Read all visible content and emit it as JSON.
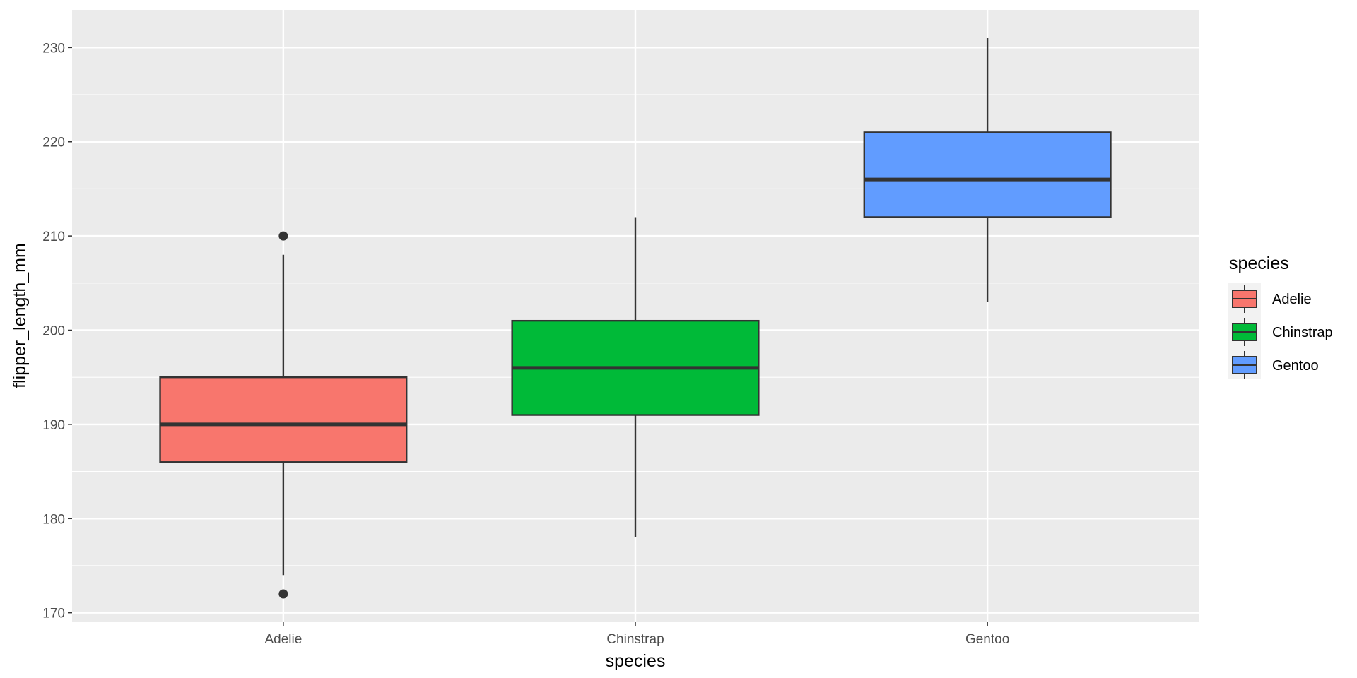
{
  "chart_data": {
    "type": "boxplot",
    "title": "",
    "xlabel": "species",
    "ylabel": "flipper_length_mm",
    "categories": [
      "Adelie",
      "Chinstrap",
      "Gentoo"
    ],
    "ylim": [
      169,
      234
    ],
    "yticks": [
      170,
      180,
      190,
      200,
      210,
      220,
      230
    ],
    "grid": true,
    "legend": {
      "title": "species",
      "position": "right",
      "entries": [
        "Adelie",
        "Chinstrap",
        "Gentoo"
      ]
    },
    "series": [
      {
        "name": "Adelie",
        "color": "#F8766D",
        "q1": 186,
        "median": 190,
        "q3": 195,
        "whisker_low": 174,
        "whisker_high": 208,
        "outliers": [
          172,
          210
        ]
      },
      {
        "name": "Chinstrap",
        "color": "#00BA38",
        "q1": 191,
        "median": 196,
        "q3": 201,
        "whisker_low": 178,
        "whisker_high": 212,
        "outliers": []
      },
      {
        "name": "Gentoo",
        "color": "#619CFF",
        "q1": 212,
        "median": 216,
        "q3": 221,
        "whisker_low": 203,
        "whisker_high": 231,
        "outliers": []
      }
    ]
  }
}
